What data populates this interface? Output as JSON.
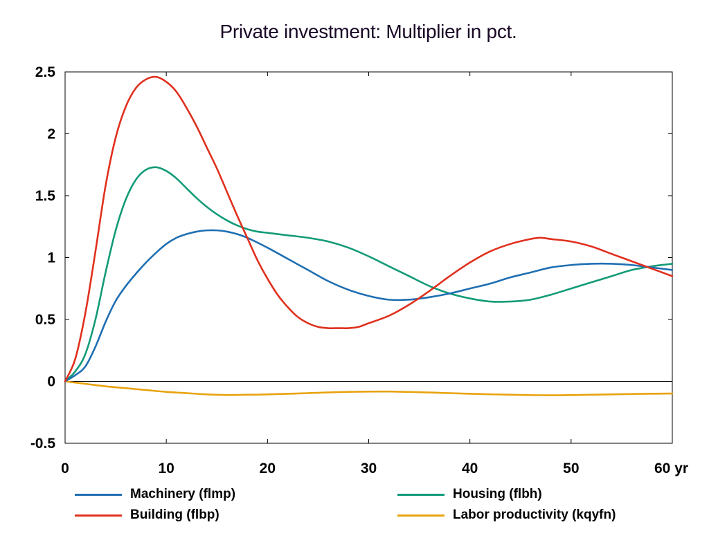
{
  "chart_data": {
    "type": "line",
    "title": "Private investment: Multiplier in pct.",
    "xlabel": "",
    "ylabel": "",
    "xlim": [
      0,
      60
    ],
    "ylim": [
      -0.5,
      2.5
    ],
    "x_ticks": [
      0,
      10,
      20,
      30,
      40,
      50,
      60
    ],
    "x_tick_labels": [
      "0",
      "10",
      "20",
      "30",
      "40",
      "50",
      "60 yr"
    ],
    "y_ticks": [
      -0.5,
      0,
      0.5,
      1,
      1.5,
      2,
      2.5
    ],
    "y_tick_labels": [
      "-0.5",
      "0",
      "0.5",
      "1",
      "1.5",
      "2",
      "2.5"
    ],
    "zero_line": true,
    "grid": false,
    "legend_position": "bottom",
    "series": [
      {
        "name": "Machinery (flmp)",
        "color": "#1f6fb2",
        "x": [
          0,
          1,
          2,
          3,
          4,
          5,
          6,
          7,
          8,
          9,
          10,
          11,
          12,
          13,
          14,
          15,
          16,
          17,
          18,
          20,
          22,
          24,
          26,
          28,
          30,
          32,
          34,
          36,
          38,
          40,
          42,
          44,
          46,
          48,
          50,
          52,
          54,
          56,
          58,
          60
        ],
        "values": [
          0,
          0.05,
          0.12,
          0.28,
          0.48,
          0.65,
          0.77,
          0.87,
          0.96,
          1.04,
          1.11,
          1.16,
          1.19,
          1.21,
          1.22,
          1.22,
          1.21,
          1.19,
          1.16,
          1.08,
          0.99,
          0.9,
          0.81,
          0.74,
          0.69,
          0.66,
          0.66,
          0.68,
          0.71,
          0.75,
          0.79,
          0.84,
          0.88,
          0.92,
          0.94,
          0.95,
          0.95,
          0.94,
          0.92,
          0.9
        ]
      },
      {
        "name": "Building (flbp)",
        "color": "#e0301e",
        "x": [
          0,
          1,
          2,
          3,
          4,
          5,
          6,
          7,
          8,
          9,
          10,
          11,
          12,
          13,
          14,
          15,
          16,
          17,
          18,
          19,
          20,
          21,
          22,
          23,
          24,
          25,
          26,
          27,
          28,
          29,
          30,
          32,
          34,
          36,
          38,
          40,
          42,
          44,
          46,
          47,
          48,
          50,
          52,
          54,
          56,
          58,
          60
        ],
        "values": [
          0,
          0.18,
          0.55,
          1.05,
          1.58,
          1.97,
          2.22,
          2.37,
          2.44,
          2.46,
          2.42,
          2.34,
          2.21,
          2.06,
          1.89,
          1.72,
          1.53,
          1.34,
          1.16,
          0.98,
          0.83,
          0.7,
          0.6,
          0.52,
          0.47,
          0.44,
          0.43,
          0.43,
          0.43,
          0.44,
          0.47,
          0.53,
          0.62,
          0.73,
          0.85,
          0.96,
          1.05,
          1.11,
          1.15,
          1.16,
          1.15,
          1.13,
          1.09,
          1.03,
          0.97,
          0.91,
          0.85
        ]
      },
      {
        "name": "Housing (flbh)",
        "color": "#129b78",
        "x": [
          0,
          1,
          2,
          3,
          4,
          5,
          6,
          7,
          8,
          9,
          10,
          11,
          12,
          13,
          14,
          15,
          16,
          17,
          18,
          19,
          20,
          22,
          24,
          26,
          28,
          30,
          32,
          34,
          36,
          38,
          40,
          42,
          44,
          46,
          48,
          50,
          52,
          54,
          56,
          58,
          60
        ],
        "values": [
          0,
          0.08,
          0.22,
          0.5,
          0.88,
          1.22,
          1.47,
          1.63,
          1.71,
          1.73,
          1.7,
          1.64,
          1.56,
          1.48,
          1.41,
          1.35,
          1.3,
          1.26,
          1.23,
          1.21,
          1.2,
          1.18,
          1.16,
          1.13,
          1.08,
          1.01,
          0.93,
          0.85,
          0.77,
          0.71,
          0.67,
          0.645,
          0.645,
          0.66,
          0.7,
          0.75,
          0.8,
          0.85,
          0.9,
          0.93,
          0.95
        ]
      },
      {
        "name": "Labor productivity (kqyfn)",
        "color": "#e8a20c",
        "x": [
          0,
          2,
          4,
          6,
          8,
          10,
          12,
          14,
          16,
          18,
          20,
          24,
          28,
          32,
          36,
          40,
          44,
          48,
          52,
          56,
          60
        ],
        "values": [
          0,
          -0.02,
          -0.04,
          -0.055,
          -0.07,
          -0.085,
          -0.095,
          -0.105,
          -0.11,
          -0.108,
          -0.105,
          -0.095,
          -0.085,
          -0.082,
          -0.09,
          -0.1,
          -0.108,
          -0.112,
          -0.108,
          -0.102,
          -0.098
        ]
      }
    ]
  }
}
